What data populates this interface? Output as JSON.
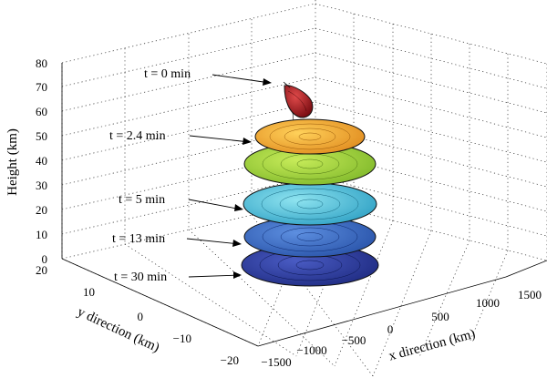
{
  "chart_data": {
    "type": "surface3d",
    "title": "",
    "xlabel": "x direction (km)",
    "ylabel": "y direction (km)",
    "zlabel": "Height (km)",
    "x_ticks": [
      "−1500",
      "−1000",
      "−500",
      "0",
      "500",
      "1000",
      "1500"
    ],
    "y_ticks": [
      "20",
      "10",
      "0",
      "−10",
      "−20"
    ],
    "z_ticks": [
      "0",
      "10",
      "20",
      "30",
      "40",
      "50",
      "60",
      "70",
      "80"
    ],
    "xlim": [
      -1500,
      1500
    ],
    "ylim": [
      -20,
      20
    ],
    "zlim": [
      0,
      80
    ],
    "grid": true,
    "series": [
      {
        "time_min": 0,
        "label": "t = 0 min",
        "height_km": 72,
        "color": "#b3252b"
      },
      {
        "time_min": 2.4,
        "label": "t = 2.4 min",
        "height_km": 48,
        "color": "#e8a62f"
      },
      {
        "time_min": 5,
        "label": "t = 5 min",
        "height_km": 24,
        "color": "#3fb8d0"
      },
      {
        "time_min": 13,
        "label": "t = 13 min",
        "height_km": 12,
        "color": "#3a6ec4"
      },
      {
        "time_min": 30,
        "label": "t = 30 min",
        "height_km": 0,
        "color": "#2c3c9a"
      }
    ],
    "extra_layer": {
      "height_km": 37,
      "color": "#9acd3a"
    }
  }
}
